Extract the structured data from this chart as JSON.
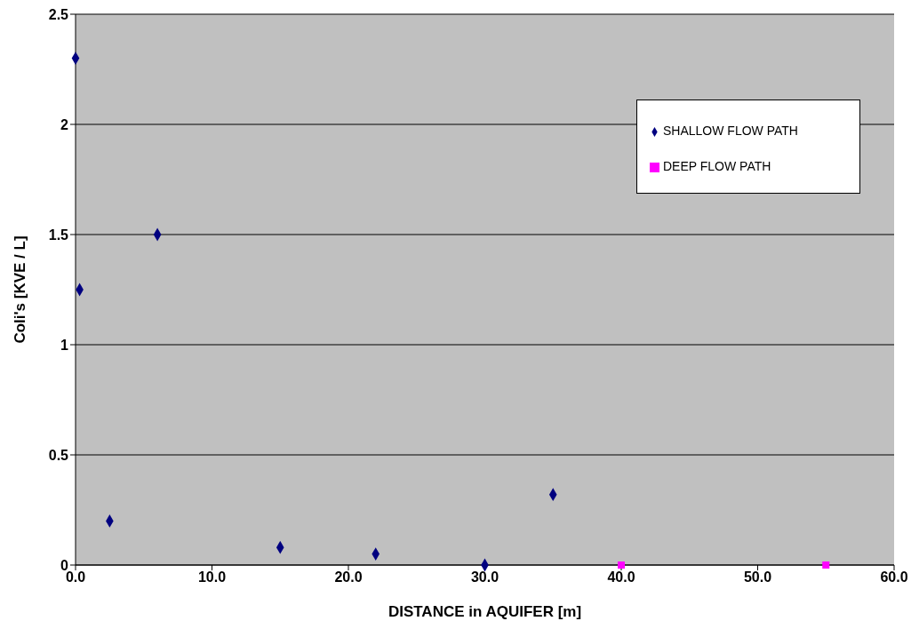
{
  "chart_data": {
    "type": "scatter",
    "xlabel": "DISTANCE in AQUIFER [m]",
    "ylabel": "Coli's [KVE / L]",
    "series": [
      {
        "name": "SHALLOW FLOW PATH",
        "color": "#000080",
        "marker": "diamond",
        "x": [
          0,
          0.3,
          2.5,
          6,
          15,
          22,
          30,
          35
        ],
        "values": [
          2.3,
          1.25,
          0.2,
          1.5,
          0.08,
          0.05,
          0,
          0.32
        ]
      },
      {
        "name": "DEEP FLOW PATH",
        "color": "#ff00ff",
        "marker": "square",
        "x": [
          40,
          55
        ],
        "values": [
          0,
          0
        ]
      }
    ],
    "xlim": [
      0,
      60
    ],
    "xticks": [
      {
        "value": 0,
        "label": "0.0"
      },
      {
        "value": 10,
        "label": "10.0"
      },
      {
        "value": 20,
        "label": "20.0"
      },
      {
        "value": 30,
        "label": "30.0"
      },
      {
        "value": 40,
        "label": "40.0"
      },
      {
        "value": 50,
        "label": "50.0"
      },
      {
        "value": 60,
        "label": "60.0"
      }
    ],
    "ylim": [
      0,
      2.5
    ],
    "yticks": [
      0,
      0.5,
      1,
      1.5,
      2,
      2.5
    ],
    "grid": "y",
    "legend": "top right"
  }
}
